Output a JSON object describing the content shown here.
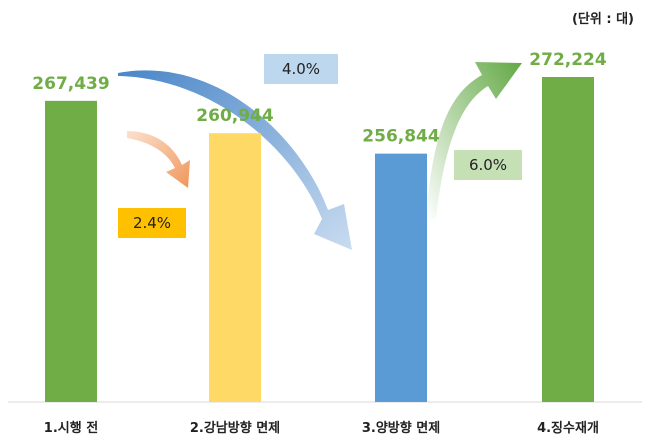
{
  "unit_label": "(단위 : 대)",
  "colors": {
    "green": "#70ad47",
    "yellow": "#ffd966",
    "blue": "#5b9bd5",
    "label_green": "#70ad47",
    "orange_box": "#ffc000",
    "blue_box": "#bdd7ee",
    "green_box": "#c5e0b4",
    "axis": "#d9d9d9"
  },
  "chart_data": {
    "type": "bar",
    "title": "",
    "xlabel": "",
    "ylabel": "",
    "categories": [
      "1.시행 전",
      "2.강남방향 면제",
      "3.양방향 면제",
      "4.징수재개"
    ],
    "values": [
      267439,
      260944,
      256844,
      272224
    ],
    "value_labels": [
      "267,439",
      "260,944",
      "256,844",
      "272,224"
    ],
    "bar_colors": [
      "#70ad47",
      "#ffd966",
      "#5b9bd5",
      "#70ad47"
    ],
    "annotations": [
      {
        "text": "2.4%",
        "from": 0,
        "to": 1,
        "arrow_color": "orange"
      },
      {
        "text": "4.0%",
        "from": 0,
        "to": 2,
        "arrow_color": "blue"
      },
      {
        "text": "6.0%",
        "from": 2,
        "to": 3,
        "arrow_color": "green"
      }
    ]
  }
}
